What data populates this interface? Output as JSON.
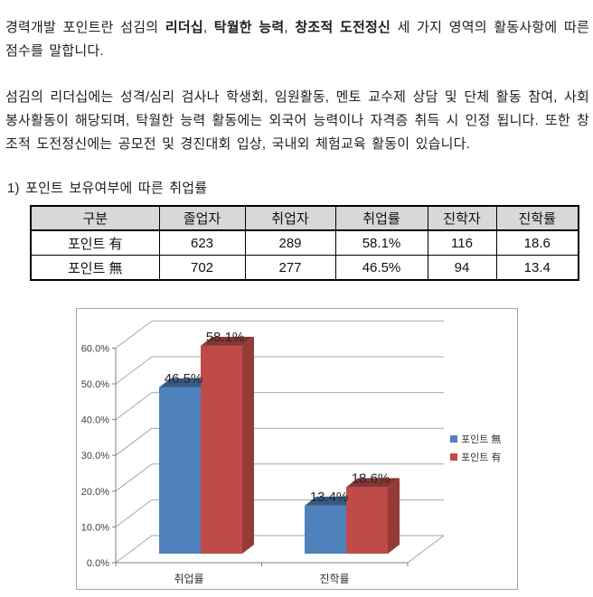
{
  "intro": {
    "p1": {
      "seg0": "경력개발 포인트란 섬김의 ",
      "seg1": "리더십",
      "seg2": ", ",
      "seg3": "탁월한 능력",
      "seg4": ", ",
      "seg5": "창조적 도전정신",
      "seg6": " 세 가지 영역의 활동사항에 따른 점수를 말합니다."
    },
    "p2": "섬김의 리더십에는 성격/심리 검사나 학생회, 임원활동, 멘토 교수제 상담 및 단체 활동 참여, 사회봉사활동이 해당되며, 탁월한 능력 활동에는 외국어 능력이나 자격증 취득 시 인정 됩니다. 또한 창조적 도전정신에는 공모전 및 경진대회 입상, 국내외 체험교육 활동이 있습니다."
  },
  "section": {
    "heading": "1) 포인트 보유여부에 따른 취업률"
  },
  "table": {
    "headers": [
      "구분",
      "졸업자",
      "취업자",
      "취업률",
      "진학자",
      "진학률"
    ],
    "rows": [
      {
        "cells": [
          "포인트 有",
          "623",
          "289",
          "58.1%",
          "116",
          "18.6"
        ]
      },
      {
        "cells": [
          "포인트 無",
          "702",
          "277",
          "46.5%",
          "94",
          "13.4"
        ]
      }
    ]
  },
  "chart_data": {
    "type": "bar",
    "variant": "3d-clustered-column",
    "title": "",
    "categories": [
      "취업률",
      "진학률"
    ],
    "series": [
      {
        "name": "포인트 無",
        "values": [
          46.5,
          13.4
        ],
        "color": "#4F81BD"
      },
      {
        "name": "포인트 有",
        "values": [
          58.1,
          18.6
        ],
        "color": "#BE4B48"
      }
    ],
    "value_labels": [
      "46.5%",
      "58.1%",
      "13.4%",
      "18.6%"
    ],
    "ylim": [
      0,
      60
    ],
    "ytick_step": 10,
    "yticks": [
      "0.0%",
      "10.0%",
      "20.0%",
      "30.0%",
      "40.0%",
      "50.0%",
      "60.0%"
    ],
    "grid": true,
    "legend_position": "right",
    "colors": {
      "gridline": "#a6a6a6",
      "axis": "#808080",
      "chart_border": "#a6a6a6",
      "tick_text": "#404040",
      "label_text": "#262626"
    }
  }
}
